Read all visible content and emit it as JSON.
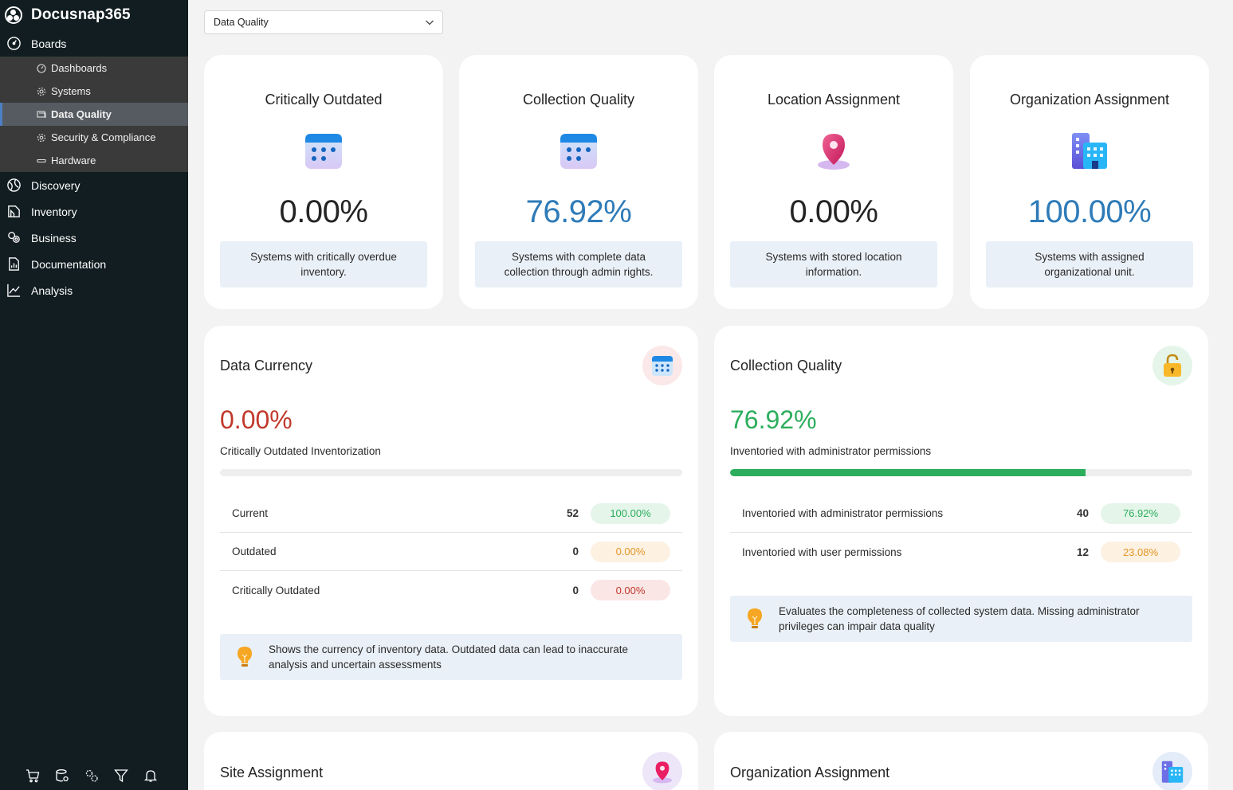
{
  "app": {
    "title": "Docusnap365"
  },
  "sidebar": {
    "items": [
      {
        "label": "Boards",
        "icon": "gauge-icon"
      },
      {
        "label": "Discovery",
        "icon": "globe-icon"
      },
      {
        "label": "Inventory",
        "icon": "inventory-icon"
      },
      {
        "label": "Business",
        "icon": "business-icon"
      },
      {
        "label": "Documentation",
        "icon": "documentation-icon"
      },
      {
        "label": "Analysis",
        "icon": "analysis-icon"
      }
    ],
    "subitems": [
      {
        "label": "Dashboards",
        "icon": "dashboard-icon"
      },
      {
        "label": "Systems",
        "icon": "gear-icon"
      },
      {
        "label": "Data Quality",
        "icon": "data-quality-icon",
        "active": true
      },
      {
        "label": "Security & Compliance",
        "icon": "shield-gear-icon"
      },
      {
        "label": "Hardware",
        "icon": "hardware-icon"
      }
    ],
    "footer_icons": [
      "cart-icon",
      "database-gear-icon",
      "settings-icon",
      "filter-icon",
      "bell-icon"
    ]
  },
  "dropdown": {
    "value": "Data Quality"
  },
  "kpis": [
    {
      "title": "Critically Outdated",
      "value": "0.00%",
      "color": "#242424",
      "description": "Systems with critically overdue inventory.",
      "icon": "calendar-icon"
    },
    {
      "title": "Collection Quality",
      "value": "76.92%",
      "color": "#2e7bb8",
      "description": "Systems with complete data collection through admin rights.",
      "icon": "calendar-icon"
    },
    {
      "title": "Location Assignment",
      "value": "0.00%",
      "color": "#242424",
      "description": "Systems with stored location information.",
      "icon": "location-pin-icon"
    },
    {
      "title": "Organization Assignment",
      "value": "100.00%",
      "color": "#2e7bb8",
      "description": "Systems with assigned organizational unit.",
      "icon": "building-icon"
    }
  ],
  "data_currency": {
    "title": "Data Currency",
    "percent": "0.00%",
    "subtitle": "Critically Outdated Inventorization",
    "progress_fraction": 0.0,
    "rows": [
      {
        "label": "Current",
        "count": "52",
        "percent": "100.00%",
        "tone": "green"
      },
      {
        "label": "Outdated",
        "count": "0",
        "percent": "0.00%",
        "tone": "orange"
      },
      {
        "label": "Critically Outdated",
        "count": "0",
        "percent": "0.00%",
        "tone": "red"
      }
    ],
    "info": "Shows the currency of inventory data. Outdated data can lead to inaccurate analysis and uncertain assessments",
    "color": "#c0392b"
  },
  "collection_quality": {
    "title": "Collection Quality",
    "percent": "76.92%",
    "subtitle": "Inventoried with administrator permissions",
    "progress_fraction": 0.7692,
    "rows": [
      {
        "label": "Inventoried with administrator permissions",
        "count": "40",
        "percent": "76.92%",
        "tone": "green"
      },
      {
        "label": "Inventoried with user permissions",
        "count": "12",
        "percent": "23.08%",
        "tone": "orange"
      }
    ],
    "info": "Evaluates the completeness of collected system data. Missing administrator privileges can impair data quality",
    "color": "#2cae5c"
  },
  "site_assignment": {
    "title": "Site Assignment"
  },
  "org_assignment": {
    "title": "Organization Assignment"
  }
}
